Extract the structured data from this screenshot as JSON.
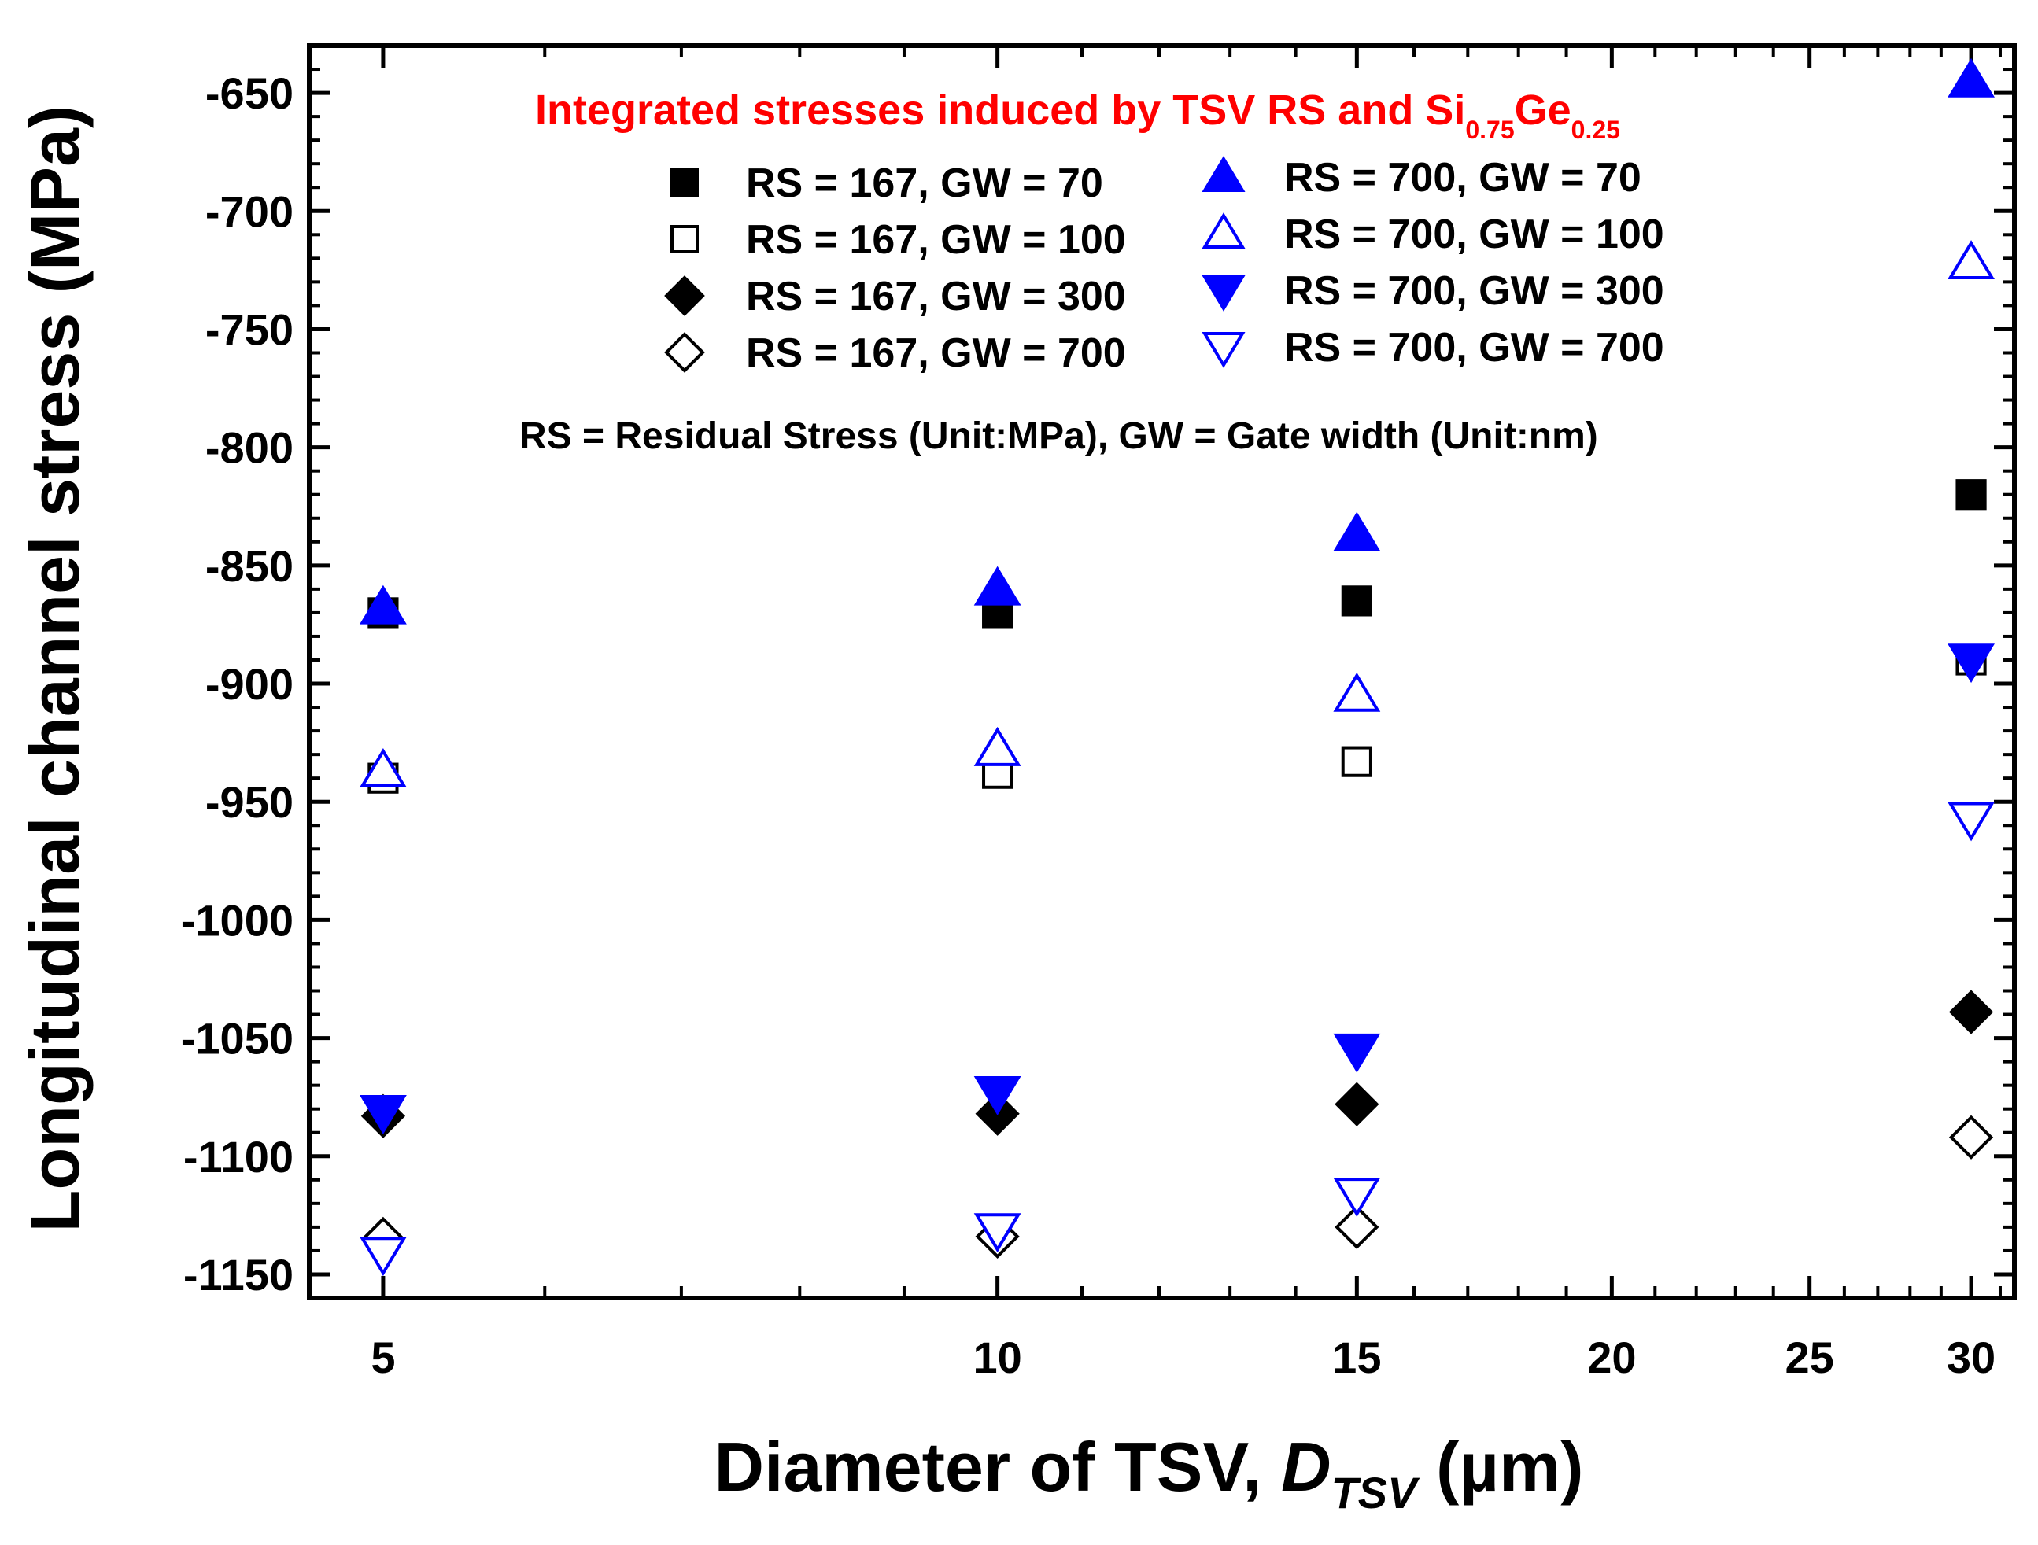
{
  "chart_data": {
    "type": "scatter",
    "title": "Integrated stresses induced by TSV RS and Si",
    "title_sub1": "0.75",
    "title_mid": "Ge",
    "title_sub2": "0.25",
    "xlabel_main": "Diameter of TSV, ",
    "xlabel_italic": "D",
    "xlabel_sub": "TSV",
    "xlabel_unit": " (µm)",
    "ylabel": "Longitudinal channel stress (MPa)",
    "x_scale": "log",
    "xlim": [
      4.6,
      31.5
    ],
    "ylim": [
      -1160,
      -630
    ],
    "x_ticks": [
      5,
      10,
      15,
      20,
      25,
      30
    ],
    "x_tick_labels": [
      "5",
      "10",
      "15",
      "20",
      "25",
      "30"
    ],
    "y_ticks": [
      -650,
      -700,
      -750,
      -800,
      -850,
      -900,
      -950,
      -1000,
      -1050,
      -1100,
      -1150
    ],
    "y_tick_labels": [
      "-650",
      "-700",
      "-750",
      "-800",
      "-850",
      "-900",
      "-950",
      "-1000",
      "-1050",
      "-1100",
      "-1150"
    ],
    "x": [
      5,
      10,
      15,
      30
    ],
    "series": [
      {
        "name": "RS = 167, GW = 70",
        "marker": "square",
        "filled": true,
        "color": "#000000",
        "values": [
          -870,
          -870,
          -865,
          -820
        ]
      },
      {
        "name": "RS = 167, GW = 100",
        "marker": "square",
        "filled": false,
        "color": "#000000",
        "values": [
          -940,
          -938,
          -933,
          -890
        ]
      },
      {
        "name": "RS = 167, GW = 300",
        "marker": "diamond",
        "filled": true,
        "color": "#000000",
        "values": [
          -1083,
          -1082,
          -1078,
          -1039
        ]
      },
      {
        "name": "RS = 167, GW = 700",
        "marker": "diamond",
        "filled": false,
        "color": "#000000",
        "values": [
          -1135,
          -1134,
          -1130,
          -1092
        ]
      },
      {
        "name": "RS = 700, GW = 70",
        "marker": "triangle-up",
        "filled": true,
        "color": "#0000ff",
        "values": [
          -868,
          -860,
          -837,
          -645
        ]
      },
      {
        "name": "RS = 700, GW = 100",
        "marker": "triangle-up",
        "filled": false,
        "color": "#0000ff",
        "values": [
          -937,
          -928,
          -905,
          -722
        ]
      },
      {
        "name": "RS = 700, GW = 300",
        "marker": "triangle-down",
        "filled": true,
        "color": "#0000ff",
        "values": [
          -1081,
          -1073,
          -1055,
          -890
        ]
      },
      {
        "name": "RS = 700, GW = 700",
        "marker": "triangle-down",
        "filled": false,
        "color": "#0000ff",
        "values": [
          -1141,
          -1131,
          -1116,
          -957
        ]
      }
    ],
    "legend_note": "RS = Residual Stress (Unit:MPa), GW = Gate width (Unit:nm)",
    "legend_position": "top-center",
    "title_color": "#ff0000",
    "grid": false
  }
}
